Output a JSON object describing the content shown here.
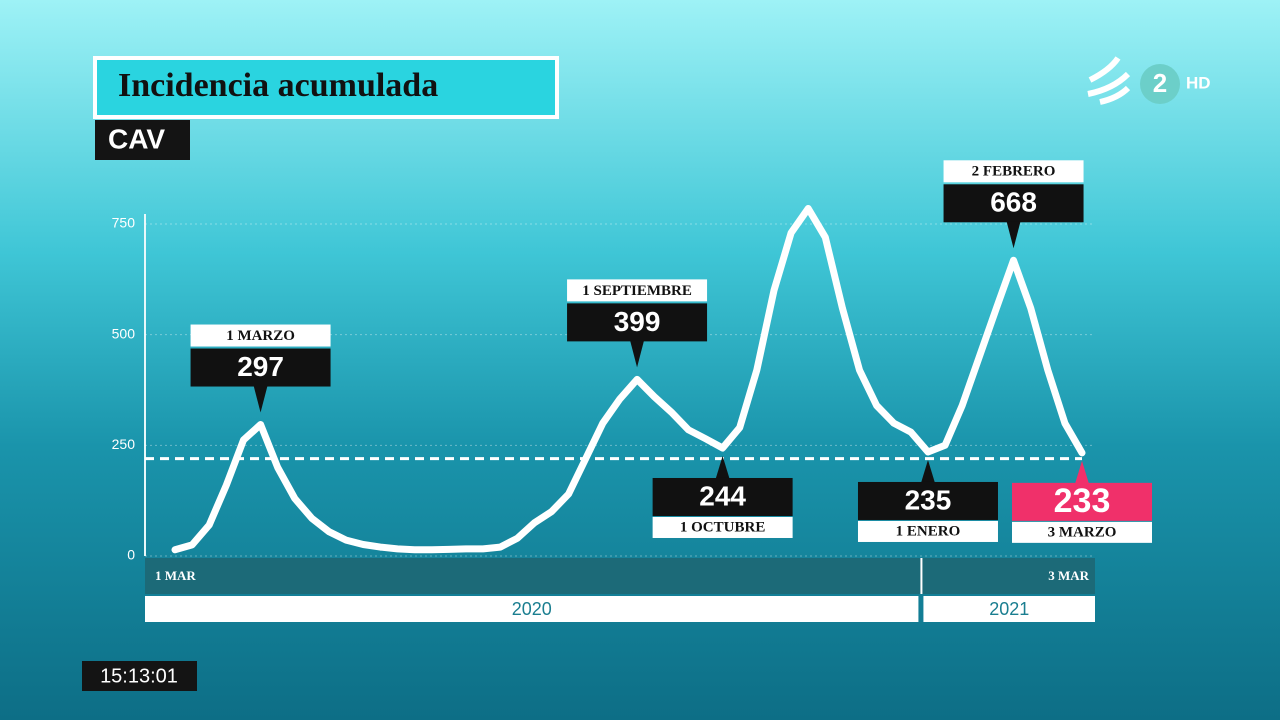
{
  "title": "Incidencia acumulada",
  "subtitle": "CAV",
  "clock": "15:13:01",
  "channel": "2",
  "channel_tag": "HD",
  "chart_data": {
    "type": "line",
    "categories": [
      "1 MAR",
      null,
      null,
      null,
      null,
      null,
      null,
      null,
      null,
      null,
      null,
      null,
      null,
      null,
      null,
      null,
      null,
      null,
      null,
      null,
      null,
      null,
      null,
      null,
      null,
      null,
      null,
      null,
      null,
      null,
      null,
      null,
      null,
      null,
      null,
      null,
      null,
      null,
      null,
      null,
      null,
      null,
      null,
      null,
      null,
      null,
      null,
      null,
      null,
      null,
      null,
      null,
      null,
      "3 MAR"
    ],
    "series": [
      {
        "name": "Incidencia acumulada",
        "color": "#ffffff",
        "values": [
          14,
          25,
          70,
          160,
          262,
          297,
          200,
          130,
          85,
          55,
          36,
          26,
          20,
          16,
          14,
          14,
          15,
          16,
          16,
          20,
          40,
          75,
          100,
          140,
          220,
          300,
          355,
          399,
          360,
          325,
          285,
          265,
          244,
          290,
          420,
          600,
          730,
          785,
          720,
          560,
          420,
          340,
          300,
          280,
          235,
          250,
          340,
          450,
          560,
          668,
          560,
          420,
          300,
          233
        ],
        "value_labels": [
          null,
          null,
          null,
          null,
          null,
          "297",
          null,
          null,
          null,
          null,
          null,
          null,
          null,
          null,
          null,
          null,
          null,
          null,
          null,
          null,
          null,
          null,
          null,
          null,
          null,
          null,
          null,
          "399",
          null,
          null,
          null,
          null,
          "244",
          null,
          null,
          null,
          null,
          null,
          null,
          null,
          null,
          null,
          null,
          null,
          "235",
          null,
          null,
          null,
          null,
          "668",
          null,
          null,
          null,
          "233"
        ],
        "point_labels": [
          null,
          null,
          null,
          null,
          null,
          "1 MARZO",
          null,
          null,
          null,
          null,
          null,
          null,
          null,
          null,
          null,
          null,
          null,
          null,
          null,
          null,
          null,
          null,
          null,
          null,
          null,
          null,
          null,
          "1 SEPTIEMBRE",
          null,
          null,
          null,
          null,
          "1 OCTUBRE",
          null,
          null,
          null,
          null,
          null,
          null,
          null,
          null,
          null,
          null,
          null,
          "1 ENERO",
          null,
          null,
          null,
          null,
          "2 FEBRERO",
          null,
          null,
          null,
          "3 MARZO"
        ]
      }
    ],
    "years": [
      {
        "label": "2020",
        "from": 0
      },
      {
        "label": "2021",
        "from": 44
      }
    ],
    "reference_line": 220,
    "highlight_last_color": "#f0306a",
    "ylim": [
      0,
      750
    ],
    "yticks": [
      0,
      250,
      500,
      750
    ],
    "grid": true
  }
}
